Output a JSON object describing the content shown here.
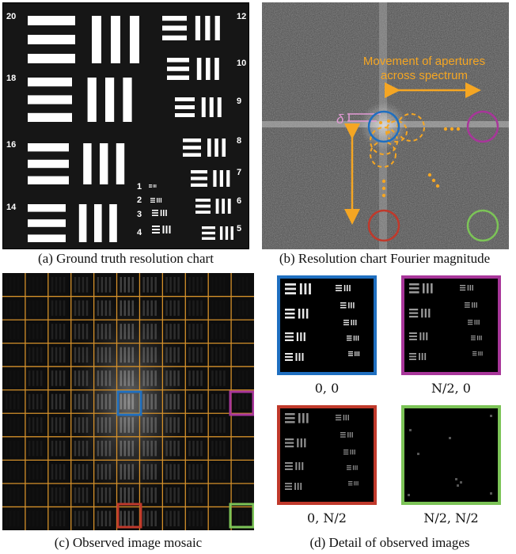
{
  "panel_a": {
    "caption": "(a) Ground truth resolution chart",
    "groups": [
      {
        "label": "20"
      },
      {
        "label": "18"
      },
      {
        "label": "16"
      },
      {
        "label": "14"
      },
      {
        "label": "12"
      },
      {
        "label": "10"
      },
      {
        "label": "9"
      },
      {
        "label": "8"
      },
      {
        "label": "7"
      },
      {
        "label": "6"
      },
      {
        "label": "5"
      },
      {
        "label": "1"
      },
      {
        "label": "2"
      },
      {
        "label": "3"
      },
      {
        "label": "4"
      }
    ]
  },
  "panel_b": {
    "caption": "(b) Resolution chart Fourier magnitude",
    "annotation_line1": "Movement of apertures",
    "annotation_line2": "across spectrum",
    "delta_label": "δ",
    "colors": {
      "blue": "#1f6fc0",
      "magenta": "#a8369a",
      "red": "#c0392b",
      "green": "#7cc457",
      "orange": "#f5a623",
      "pink": "#e39bd6"
    }
  },
  "panel_c": {
    "caption": "(c) Observed image mosaic",
    "grid_color": "#d4902a"
  },
  "panel_d": {
    "caption": "(d) Detail of observed images",
    "tiles": [
      {
        "label": "0, 0",
        "border": "#1f6fc0"
      },
      {
        "label": "N/2, 0",
        "border": "#a8369a"
      },
      {
        "label": "0, N/2",
        "border": "#c0392b"
      },
      {
        "label": "N/2, N/2",
        "border": "#7cc457"
      }
    ]
  }
}
